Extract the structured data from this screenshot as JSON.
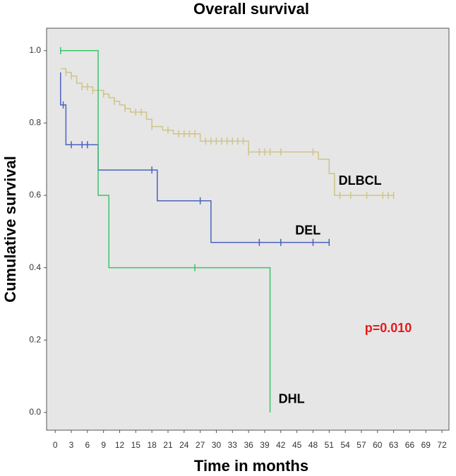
{
  "chart_data": {
    "type": "km",
    "title": "Overall survival",
    "xlabel": "Time in months",
    "ylabel": "Cumulative survival",
    "annotation": {
      "text": "p=0.010",
      "color": "#e8191c"
    },
    "xlim": [
      -1.6,
      73.3
    ],
    "ylim": [
      -0.049,
      1.062
    ],
    "xticks": [
      0,
      3,
      6,
      9,
      12,
      15,
      18,
      21,
      24,
      27,
      30,
      33,
      36,
      39,
      42,
      45,
      48,
      51,
      54,
      57,
      60,
      63,
      66,
      69,
      72
    ],
    "yticks": [
      {
        "value": 0,
        "label": "0.0"
      },
      0.2,
      0.4,
      0.6,
      0.8,
      {
        "value": 1,
        "label": "1.0"
      }
    ],
    "background": "#e6e6e6",
    "series": [
      {
        "name": "DLBCL",
        "color": "#cfc488",
        "x": [
          1,
          2,
          3,
          4,
          5,
          7,
          9,
          10,
          11,
          12,
          13,
          14,
          17,
          18,
          20,
          22,
          27,
          36,
          49,
          51,
          52,
          63
        ],
        "values": [
          0.95,
          0.94,
          0.93,
          0.91,
          0.9,
          0.89,
          0.88,
          0.87,
          0.86,
          0.85,
          0.84,
          0.83,
          0.81,
          0.79,
          0.78,
          0.77,
          0.75,
          0.72,
          0.7,
          0.66,
          0.6,
          0.6
        ],
        "censored": [
          2,
          3,
          5,
          6,
          7,
          9,
          11,
          13,
          15,
          16,
          18,
          21,
          23,
          24,
          25,
          26,
          28,
          29,
          30,
          31,
          32,
          33,
          34,
          35,
          36,
          38,
          39,
          40,
          42,
          48,
          53,
          55,
          58,
          61,
          62,
          63
        ]
      },
      {
        "name": "DEL",
        "color": "#4a62c0",
        "x": [
          1,
          1,
          2,
          8,
          19,
          29,
          51
        ],
        "values": [
          0.94,
          0.85,
          0.74,
          0.67,
          0.585,
          0.47,
          0.47
        ],
        "censored": [
          1.5,
          3,
          5,
          6,
          18,
          27,
          38,
          42,
          48,
          51
        ]
      },
      {
        "name": "DHL",
        "color": "#3cc36a",
        "x": [
          1,
          8,
          10,
          40
        ],
        "values": [
          1.0,
          0.6,
          0.4,
          0.0
        ],
        "censored": [
          1,
          26
        ]
      }
    ]
  }
}
